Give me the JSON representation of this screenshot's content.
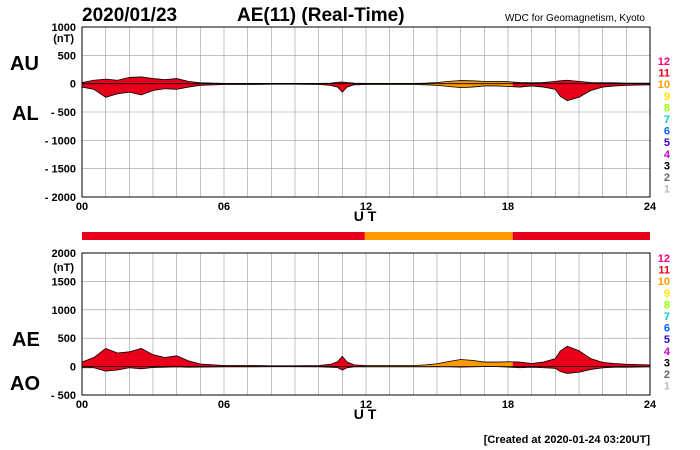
{
  "header": {
    "date": "2020/01/23",
    "title": "AE(11) (Real-Time)",
    "source": "WDC for Geomagnetism, Kyoto"
  },
  "footer": {
    "created": "[Created at 2020-01-24 03:20UT]"
  },
  "station_count_legend": [
    "12",
    "11",
    "10",
    "9",
    "8",
    "7",
    "6",
    "5",
    "4",
    "3",
    "2",
    "1"
  ],
  "station_count_colors": [
    "#ff0080",
    "#e8001a",
    "#ff9900",
    "#ffe600",
    "#99ff00",
    "#00cccc",
    "#0066ff",
    "#3300cc",
    "#cc00cc",
    "#000000",
    "#666666",
    "#bbbbbb"
  ],
  "chart_data": [
    {
      "type": "area",
      "panel": "AU/AL",
      "labels": {
        "upper": "AU",
        "lower": "AL"
      },
      "unit": "(nT)",
      "xlabel": "U T",
      "xlim": [
        0,
        24
      ],
      "xticks": [
        "00",
        "06",
        "12",
        "18",
        "24"
      ],
      "ylim": [
        -2000,
        1000
      ],
      "yticks": [
        "1000",
        "500",
        "0",
        "- 500",
        "- 1000",
        "- 1500",
        "- 2000"
      ],
      "grid": true,
      "x": [
        0,
        0.5,
        1,
        1.5,
        2,
        2.5,
        3,
        3.5,
        4,
        4.5,
        5,
        6,
        7,
        8,
        9,
        10,
        10.5,
        10.8,
        11,
        11.2,
        11.5,
        12,
        13,
        14,
        14.5,
        15,
        15.5,
        16,
        16.5,
        17,
        17.5,
        18,
        18.5,
        19,
        19.5,
        20,
        20.2,
        20.5,
        21,
        21.5,
        22,
        22.5,
        23,
        24
      ],
      "series": [
        {
          "name": "AU",
          "values": [
            20,
            60,
            80,
            60,
            110,
            120,
            90,
            70,
            90,
            40,
            15,
            5,
            5,
            5,
            5,
            5,
            10,
            25,
            30,
            20,
            10,
            5,
            5,
            5,
            10,
            20,
            40,
            55,
            50,
            40,
            40,
            35,
            20,
            15,
            20,
            40,
            50,
            60,
            40,
            20,
            15,
            15,
            10,
            10
          ]
        },
        {
          "name": "AL",
          "values": [
            -60,
            -100,
            -240,
            -180,
            -150,
            -200,
            -120,
            -90,
            -100,
            -60,
            -30,
            -15,
            -15,
            -10,
            -10,
            -15,
            -30,
            -60,
            -150,
            -60,
            -20,
            -15,
            -15,
            -15,
            -20,
            -30,
            -50,
            -70,
            -60,
            -40,
            -40,
            -50,
            -60,
            -40,
            -60,
            -100,
            -220,
            -300,
            -240,
            -120,
            -60,
            -40,
            -30,
            -20
          ]
        }
      ],
      "band_colors": [
        "#e8001a",
        "#ff9900"
      ]
    },
    {
      "type": "area",
      "panel": "AE/AO",
      "labels": {
        "upper": "AE",
        "lower": "AO"
      },
      "unit": "(nT)",
      "xlabel": "U T",
      "xlim": [
        0,
        24
      ],
      "xticks": [
        "00",
        "06",
        "12",
        "18",
        "24"
      ],
      "ylim": [
        -500,
        2000
      ],
      "yticks": [
        "2000",
        "1500",
        "1000",
        "500",
        "0",
        "- 500"
      ],
      "grid": true,
      "x": [
        0,
        0.5,
        1,
        1.5,
        2,
        2.5,
        3,
        3.5,
        4,
        4.5,
        5,
        6,
        7,
        8,
        9,
        10,
        10.5,
        10.8,
        11,
        11.2,
        11.5,
        12,
        13,
        14,
        14.5,
        15,
        15.5,
        16,
        16.5,
        17,
        17.5,
        18,
        18.5,
        19,
        19.5,
        20,
        20.2,
        20.5,
        21,
        21.5,
        22,
        22.5,
        23,
        24
      ],
      "series": [
        {
          "name": "AE",
          "values": [
            80,
            160,
            320,
            240,
            260,
            320,
            210,
            160,
            190,
            100,
            45,
            20,
            20,
            15,
            15,
            20,
            40,
            85,
            180,
            80,
            30,
            20,
            20,
            20,
            30,
            50,
            90,
            125,
            110,
            80,
            80,
            85,
            80,
            55,
            80,
            140,
            270,
            360,
            280,
            140,
            75,
            55,
            40,
            30
          ]
        },
        {
          "name": "AO",
          "values": [
            -20,
            -20,
            -80,
            -60,
            -20,
            -40,
            -15,
            -10,
            -5,
            -10,
            -8,
            -5,
            -5,
            -3,
            -3,
            -5,
            -10,
            -18,
            -60,
            -20,
            -5,
            -5,
            -5,
            -5,
            -5,
            -5,
            -5,
            -8,
            -5,
            0,
            0,
            -8,
            -20,
            -12,
            -20,
            -30,
            -85,
            -120,
            -100,
            -50,
            -22,
            -12,
            -10,
            -5
          ]
        }
      ],
      "band_colors": [
        "#e8001a",
        "#ff9900"
      ]
    }
  ],
  "coverage_bar": {
    "segments": [
      {
        "from": 0,
        "to": 11.95,
        "color": "#e8001a"
      },
      {
        "from": 11.95,
        "to": 18.2,
        "color": "#ff9900"
      },
      {
        "from": 18.2,
        "to": 24,
        "color": "#e8001a"
      }
    ]
  }
}
